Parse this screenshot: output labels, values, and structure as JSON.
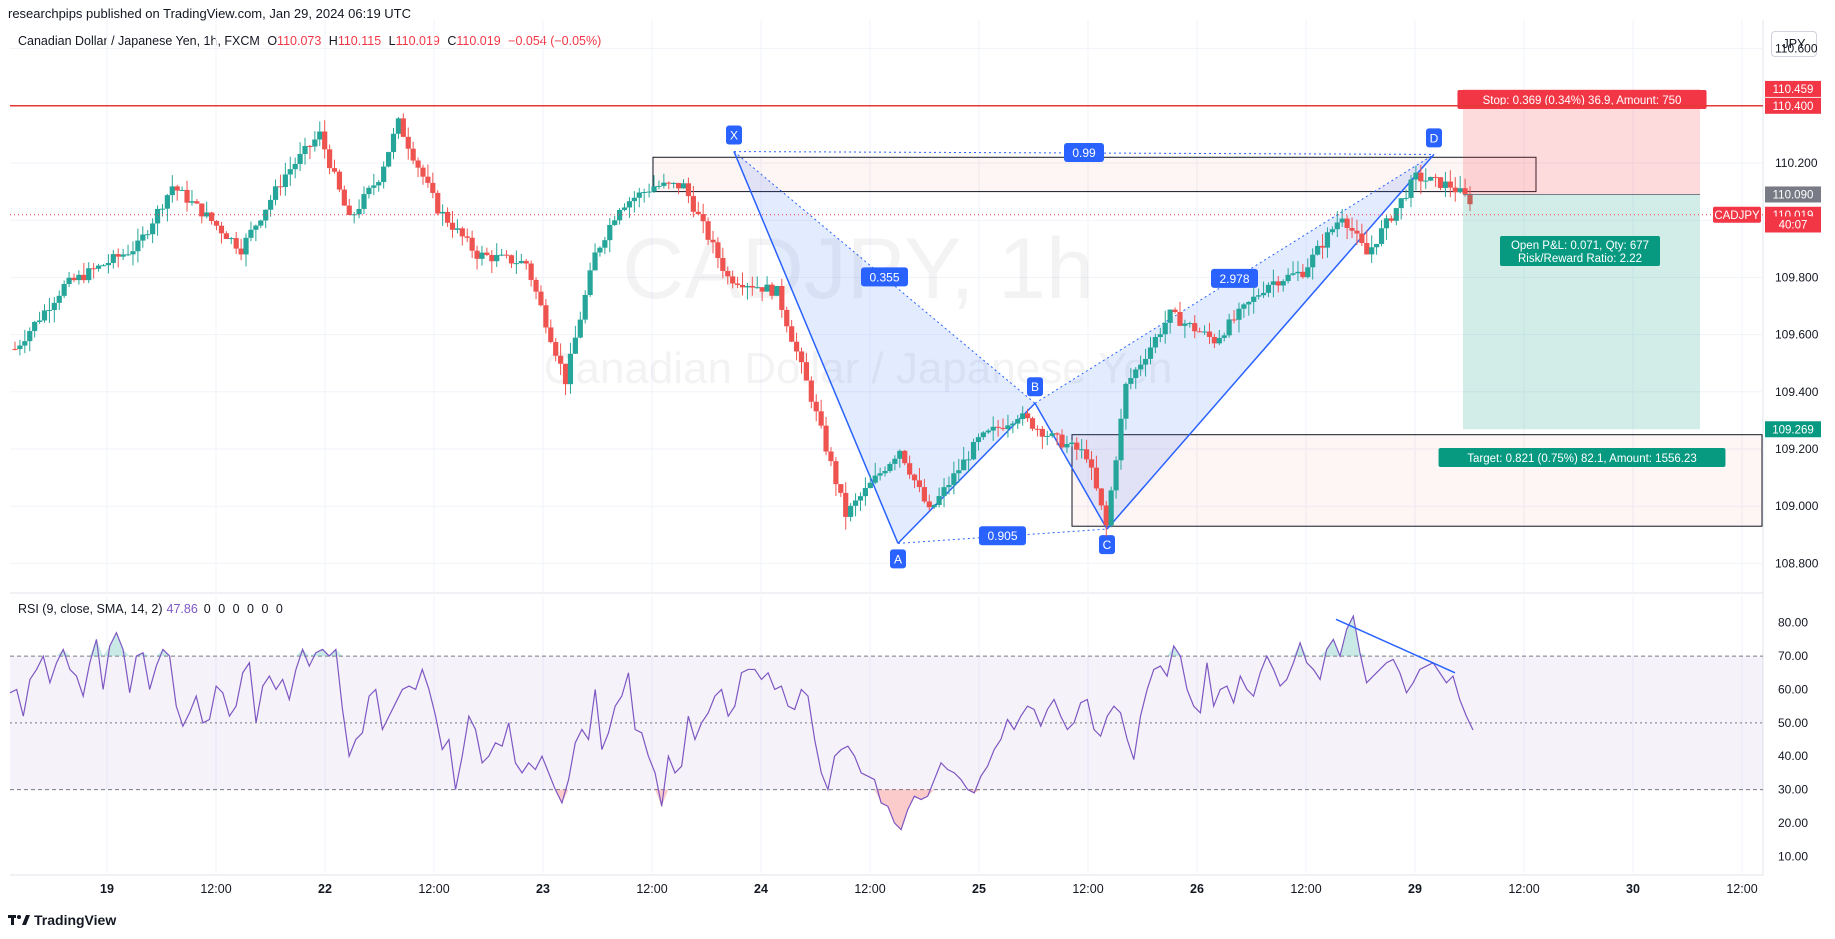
{
  "header": {
    "publisher": "researchpips published on TradingView.com, Jan 29, 2024 06:19 UTC",
    "symbol_desc": "Canadian Dollar / Japanese Yen, 1h, FXCM",
    "ohlc": {
      "open": "110.073",
      "high": "110.115",
      "low": "110.019",
      "close": "110.019",
      "change": "−0.054 (−0.05%)"
    },
    "ohlc_labels": {
      "o": "O",
      "h": "H",
      "l": "L",
      "c": "C"
    },
    "currency_button": "JPY"
  },
  "watermark": {
    "ticker": "CADJPY, 1h",
    "name": "Canadian Dollar / Japanese Yen"
  },
  "colors": {
    "up": "#26a69a",
    "down": "#ef5350",
    "rsi": "#7e57c2",
    "pattern_line": "#2962ff",
    "resistance": "#e53935"
  },
  "chart_data": [
    {
      "type": "candlestick",
      "title": "Canadian Dollar / Japanese Yen, 1h, FXCM",
      "ylim": [
        108.7,
        110.7
      ],
      "y_ticks": [
        "110.600",
        "110.400",
        "110.200",
        "110.000",
        "109.800",
        "109.600",
        "109.400",
        "109.200",
        "109.000",
        "108.800"
      ],
      "x_ticks": [
        "19",
        "12:00",
        "22",
        "12:00",
        "23",
        "12:00",
        "24",
        "12:00",
        "25",
        "12:00",
        "26",
        "12:00",
        "29",
        "12:00",
        "30",
        "12:00"
      ],
      "grid": true,
      "resistance_level": 110.4,
      "price_labels": [
        {
          "label": "110.459",
          "value": 110.459,
          "color": "#f23645"
        },
        {
          "label": "110.400",
          "value": 110.4,
          "color": "#f23645"
        },
        {
          "label": "110.090",
          "value": 110.09,
          "color": "#787b86"
        },
        {
          "label": "110.019",
          "value": 110.019,
          "color": "#f23645"
        },
        {
          "label": "40:07",
          "value": 109.985,
          "color": "#f23645"
        },
        {
          "label": "109.269",
          "value": 109.269,
          "color": "#089981"
        }
      ],
      "symbol_tag": "CADJPY",
      "pattern_points": [
        {
          "label": "X",
          "value": 110.24
        },
        {
          "label": "A",
          "value": 108.87
        },
        {
          "label": "B",
          "value": 109.36
        },
        {
          "label": "C",
          "value": 108.92
        },
        {
          "label": "D",
          "value": 110.23
        }
      ],
      "ratios": [
        "0.99",
        "0.355",
        "0.905",
        "2.978"
      ],
      "position": {
        "stop_text": "Stop: 0.369 (0.34%) 36.9, Amount: 750",
        "pnl_text": "Open P&L: 0.071, Qty: 677",
        "rr_text": "Risk/Reward Ratio: 2.22",
        "target_text": "Target: 0.821 (0.75%) 82.1, Amount: 1556.23",
        "entry": 110.09,
        "stop": 110.459,
        "target": 109.269
      },
      "zones": [
        {
          "name": "supply",
          "from": 110.13,
          "to": 110.19
        },
        {
          "name": "demand",
          "from": 108.93,
          "to": 109.25
        }
      ]
    },
    {
      "type": "line",
      "title": "RSI (9, close, SMA, 14, 2)",
      "legend_value": "47.86",
      "legend_extra": "0 0 0 0 0 0",
      "ylim": [
        5,
        88
      ],
      "y_ticks": [
        "80.00",
        "70.00",
        "60.00",
        "50.00",
        "40.00",
        "30.00",
        "20.00",
        "10.00"
      ],
      "bands": [
        30,
        50,
        70
      ],
      "values": [
        59,
        60,
        52,
        63,
        66,
        70,
        62,
        68,
        72,
        66,
        64,
        58,
        68,
        75,
        60,
        73,
        77,
        72,
        59,
        70,
        71,
        60,
        67,
        72,
        70,
        55,
        49,
        53,
        58,
        50,
        51,
        61,
        59,
        52,
        55,
        65,
        68,
        50,
        61,
        64,
        60,
        63,
        57,
        66,
        72,
        67,
        71,
        72,
        70,
        72,
        54,
        40,
        45,
        47,
        58,
        60,
        48,
        52,
        56,
        60,
        61,
        60,
        66,
        60,
        52,
        42,
        45,
        30,
        40,
        52,
        48,
        38,
        40,
        44,
        43,
        50,
        38,
        35,
        38,
        36,
        40,
        35,
        30,
        26,
        33,
        44,
        48,
        45,
        60,
        42,
        47,
        55,
        58,
        65,
        48,
        47,
        40,
        35,
        25,
        40,
        35,
        37,
        52,
        45,
        50,
        53,
        58,
        60,
        52,
        55,
        65,
        66,
        66,
        63,
        65,
        60,
        61,
        55,
        54,
        60,
        58,
        45,
        35,
        30,
        40,
        42,
        43,
        40,
        35,
        34,
        33,
        26,
        25,
        20,
        18,
        24,
        28,
        27,
        28,
        33,
        38,
        36,
        35,
        33,
        30,
        29,
        34,
        37,
        42,
        45,
        51,
        48,
        52,
        55,
        54,
        49,
        54,
        57,
        52,
        48,
        50,
        56,
        57,
        48,
        46,
        52,
        55,
        53,
        45,
        39,
        52,
        60,
        66,
        67,
        64,
        73,
        70,
        60,
        55,
        53,
        68,
        55,
        60,
        61,
        56,
        64,
        60,
        58,
        65,
        70,
        66,
        61,
        63,
        68,
        74,
        68,
        66,
        63,
        72,
        75,
        70,
        78,
        82,
        71,
        62,
        64,
        66,
        68,
        69,
        65,
        59,
        62,
        66,
        67,
        68,
        65,
        62,
        64,
        57,
        52,
        47.86
      ],
      "divergence_line": [
        81,
        65
      ]
    }
  ],
  "footer": {
    "brand": "TradingView"
  }
}
